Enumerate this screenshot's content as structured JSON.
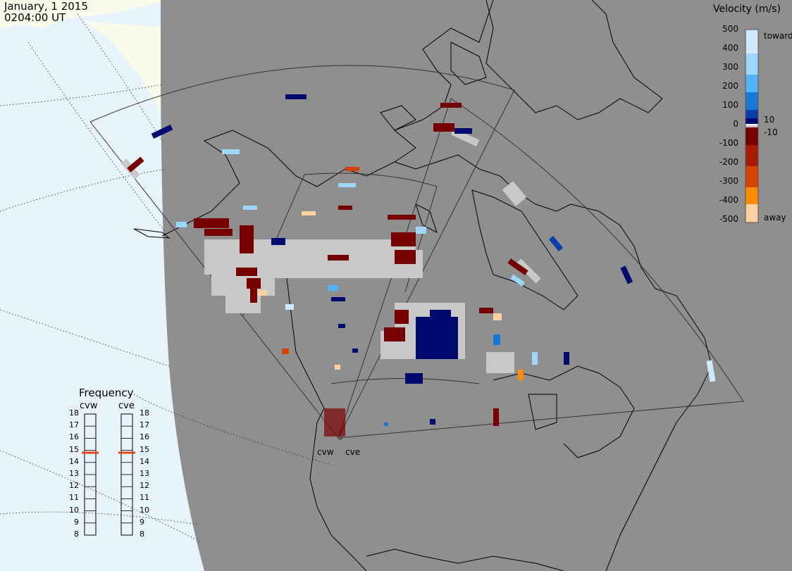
{
  "header": {
    "date": "January, 1 2015",
    "time": "0204:00 UT"
  },
  "velocity_scale": {
    "title": "Velocity (m/s)",
    "ticks": [
      "500",
      "400",
      "300",
      "200",
      "100",
      "0",
      "-100",
      "-200",
      "-300",
      "-400",
      "-500"
    ],
    "inner_labels": [
      "10",
      "-10"
    ],
    "toward_label": "toward",
    "away_label": "away",
    "colors_top_to_bottom": [
      "#cfe8fb",
      "#9fd6fb",
      "#53b4f5",
      "#1978d6",
      "#0b3fa8",
      "#000a6e",
      "#ffffff",
      "#c8c8c8",
      "#760000",
      "#a81a00",
      "#d44400",
      "#ff8c00",
      "#ffd0a0"
    ]
  },
  "frequency_panel": {
    "title": "Frequency",
    "radars": [
      {
        "name": "cvw",
        "frequency_mhz": 14.8
      },
      {
        "name": "cve",
        "frequency_mhz": 14.8
      }
    ],
    "scale_labels": [
      "18",
      "17",
      "16",
      "15",
      "14",
      "13",
      "12",
      "11",
      "10",
      "9",
      "8"
    ],
    "indicator_color": "#e04a12"
  },
  "radar_sites": [
    "cvw",
    "cve"
  ],
  "colors": {
    "night_shade": "#8f8f8f",
    "land_day": "#fbfbec",
    "ocean_day": "#e8f4fb",
    "ground_scatter": "#c8c8c8"
  }
}
